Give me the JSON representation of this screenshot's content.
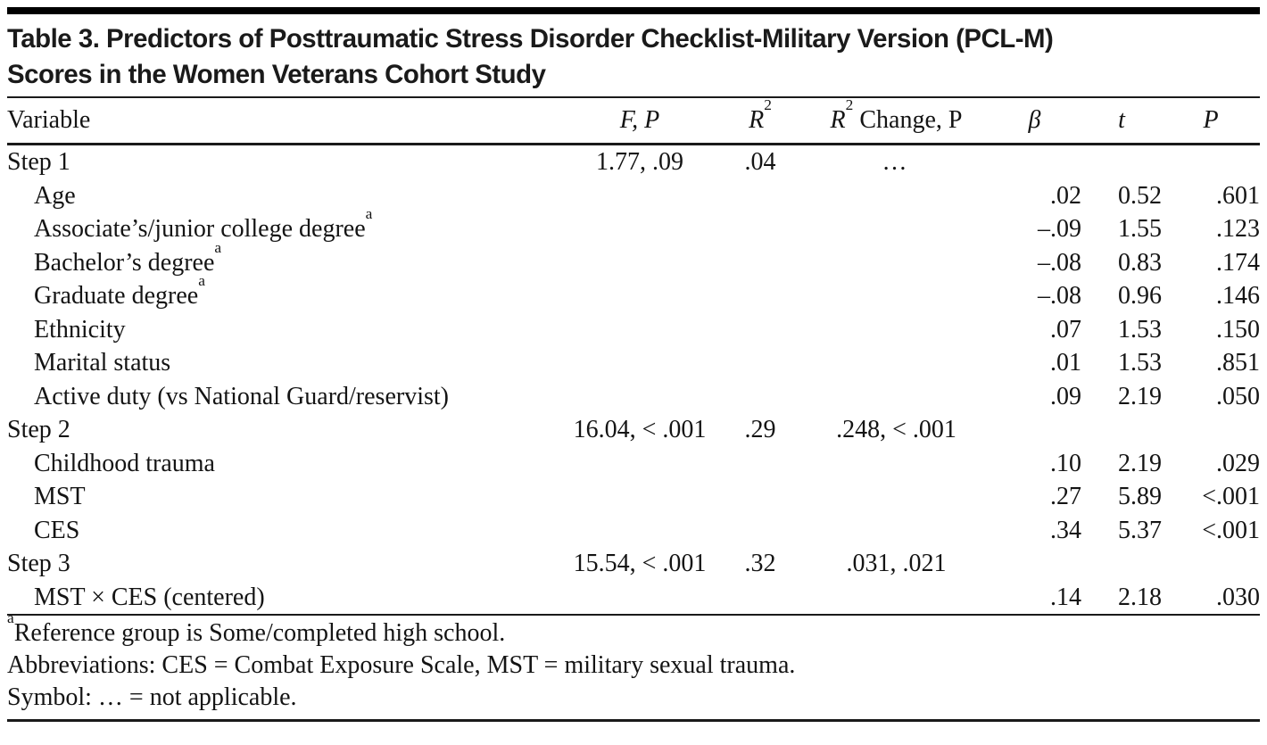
{
  "header": {
    "title_line1": "Table 3. Predictors of Posttraumatic Stress Disorder Checklist-Military Version (PCL-M)",
    "title_line2": "Scores in the Women Veterans Cohort Study"
  },
  "columns": {
    "variable": "Variable",
    "fp": "F, P",
    "r2_base": "R",
    "r2_sup": "2",
    "r2c_base": "R",
    "r2c_sup": "2",
    "r2c_rest": " Change, P",
    "beta": "β",
    "t": "t",
    "p": "P"
  },
  "rows": [
    {
      "label": "Step 1",
      "fp": "1.77, .09",
      "r2": ".04",
      "r2c": "…",
      "beta": "",
      "t": "",
      "p": ""
    },
    {
      "label": "Age",
      "beta": ".02",
      "t": "0.52",
      "p": ".601"
    },
    {
      "label": "Associate’s/junior college degree",
      "sup": "a",
      "beta": "–.09",
      "t": "1.55",
      "p": ".123"
    },
    {
      "label": "Bachelor’s degree",
      "sup": "a",
      "beta": "–.08",
      "t": "0.83",
      "p": ".174"
    },
    {
      "label": "Graduate degree",
      "sup": "a",
      "beta": "–.08",
      "t": "0.96",
      "p": ".146"
    },
    {
      "label": "Ethnicity",
      "beta": ".07",
      "t": "1.53",
      "p": ".150"
    },
    {
      "label": "Marital status",
      "beta": ".01",
      "t": "1.53",
      "p": ".851"
    },
    {
      "label": "Active duty (vs National Guard/reservist)",
      "beta": ".09",
      "t": "2.19",
      "p": ".050"
    },
    {
      "label": "Step 2",
      "fp": "16.04, < .001",
      "r2": ".29",
      "r2c": ".248, < .001"
    },
    {
      "label": "Childhood trauma",
      "beta": ".10",
      "t": "2.19",
      "p": ".029"
    },
    {
      "label": "MST",
      "beta": ".27",
      "t": "5.89",
      "p": "<.001"
    },
    {
      "label": "CES",
      "beta": ".34",
      "t": "5.37",
      "p": "<.001"
    },
    {
      "label": "Step 3",
      "fp": "15.54, < .001",
      "r2": ".32",
      "r2c": ".031, .021"
    },
    {
      "label": "MST × CES (centered)",
      "beta": ".14",
      "t": "2.18",
      "p": ".030"
    }
  ],
  "footnotes": {
    "marker": "a",
    "line1": "Reference group is Some/completed high school.",
    "line2": "Abbreviations: CES = Combat Exposure Scale, MST = military sexual trauma.",
    "line3": "Symbol: … = not applicable."
  },
  "colors": {
    "text": "#141414",
    "rule": "#000000",
    "background": "#ffffff"
  }
}
